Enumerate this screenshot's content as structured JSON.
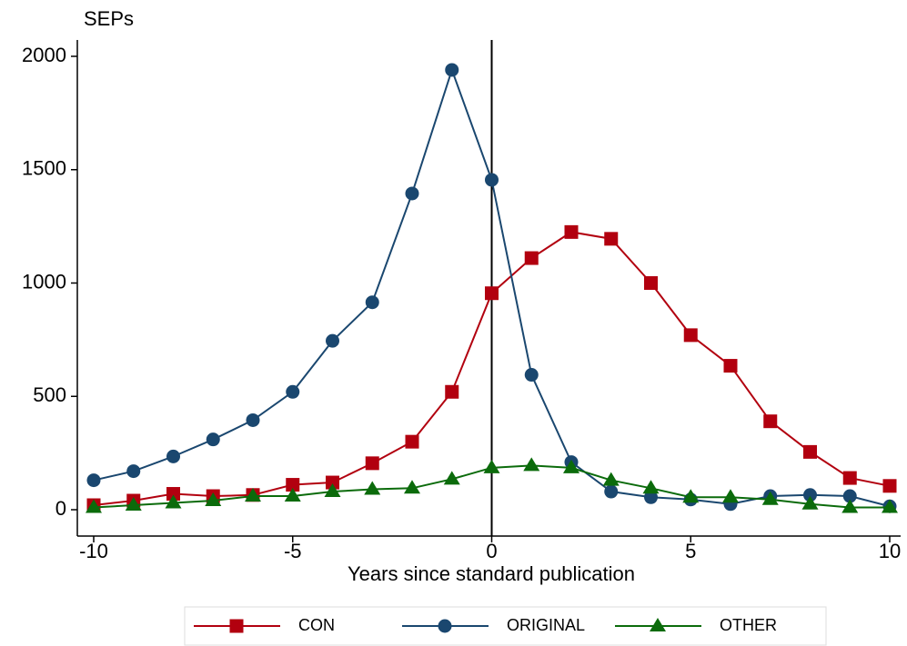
{
  "chart_data": {
    "type": "line",
    "y_label": "SEPs",
    "x_label": "Years since standard publication",
    "x": [
      -10,
      -9,
      -8,
      -7,
      -6,
      -5,
      -4,
      -3,
      -2,
      -1,
      0,
      1,
      2,
      3,
      4,
      5,
      6,
      7,
      8,
      9,
      10
    ],
    "series": [
      {
        "name": "CON",
        "color": "#b2000f",
        "marker": "square",
        "values": [
          20,
          40,
          70,
          60,
          65,
          110,
          120,
          205,
          300,
          520,
          955,
          1110,
          1225,
          1195,
          1000,
          770,
          635,
          390,
          255,
          140,
          105
        ]
      },
      {
        "name": "ORIGINAL",
        "color": "#1a476f",
        "marker": "circle",
        "values": [
          130,
          170,
          235,
          310,
          395,
          520,
          745,
          915,
          1395,
          1940,
          1455,
          595,
          210,
          80,
          55,
          45,
          25,
          60,
          65,
          60,
          15
        ]
      },
      {
        "name": "OTHER",
        "color": "#0b6b0b",
        "marker": "triangle",
        "values": [
          10,
          20,
          30,
          40,
          60,
          60,
          80,
          90,
          95,
          135,
          185,
          195,
          185,
          130,
          95,
          55,
          55,
          45,
          25,
          10,
          10
        ]
      }
    ],
    "xlim": [
      -10,
      10
    ],
    "xticks": [
      -10,
      -5,
      0,
      5,
      10
    ],
    "ylim": [
      0,
      2000
    ],
    "yticks": [
      0,
      500,
      1000,
      1500,
      2000
    ],
    "xline": 0,
    "grid": false,
    "legend": "bottom"
  }
}
